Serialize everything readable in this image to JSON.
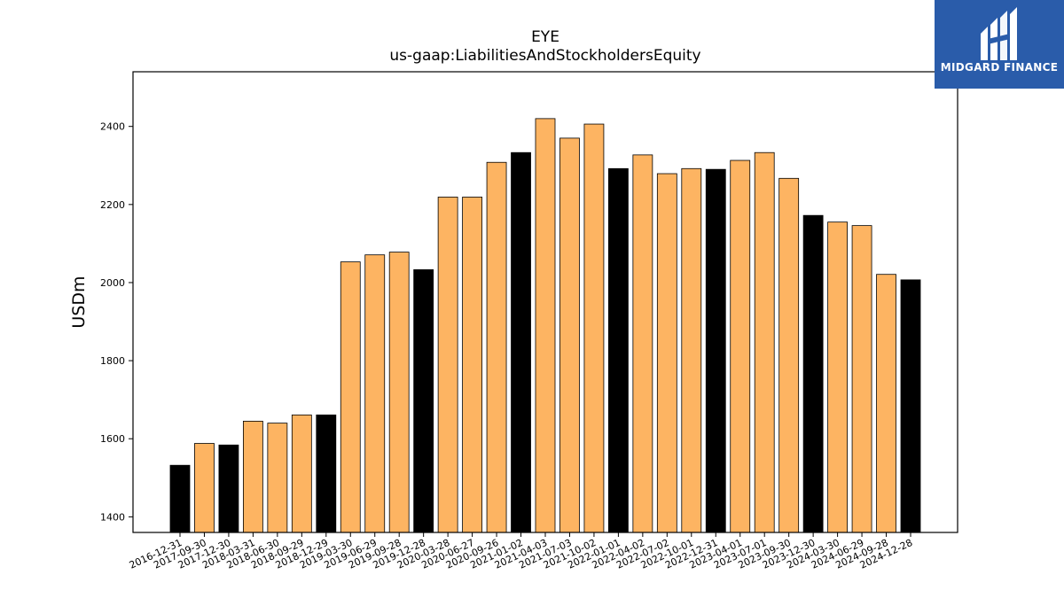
{
  "title": "EYE",
  "subtitle": "us-gaap:LiabilitiesAndStockholdersEquity",
  "logo_text": "MIDGARD FINANCE",
  "colors": {
    "quarter": "#fdb462",
    "year_end": "#000000",
    "logo_bg": "#2a5caa"
  },
  "chart_data": {
    "type": "bar",
    "title": "EYE",
    "subtitle": "us-gaap:LiabilitiesAndStockholdersEquity",
    "xlabel": "",
    "ylabel": "USDm",
    "ylim": [
      1360,
      2540
    ],
    "yticks": [
      1400,
      1600,
      1800,
      2000,
      2200,
      2400
    ],
    "grid": false,
    "categories": [
      "2016-12-31",
      "2017-09-30",
      "2017-12-30",
      "2018-03-31",
      "2018-06-30",
      "2018-09-29",
      "2018-12-29",
      "2019-03-30",
      "2019-06-29",
      "2019-09-28",
      "2019-12-28",
      "2020-03-28",
      "2020-06-27",
      "2020-09-26",
      "2021-01-02",
      "2021-04-03",
      "2021-07-03",
      "2021-10-02",
      "2022-01-01",
      "2022-04-02",
      "2022-07-02",
      "2022-10-01",
      "2022-12-31",
      "2023-04-01",
      "2023-07-01",
      "2023-09-30",
      "2023-12-30",
      "2024-03-30",
      "2024-06-29",
      "2024-09-28",
      "2024-12-28"
    ],
    "values": [
      1532,
      1588,
      1584,
      1645,
      1640,
      1661,
      1661,
      2053,
      2071,
      2078,
      2033,
      2219,
      2219,
      2308,
      2333,
      2420,
      2370,
      2406,
      2292,
      2327,
      2279,
      2292,
      2290,
      2313,
      2333,
      2267,
      2172,
      2155,
      2146,
      2021,
      2007
    ],
    "year_end": [
      true,
      false,
      true,
      false,
      false,
      false,
      true,
      false,
      false,
      false,
      true,
      false,
      false,
      false,
      true,
      false,
      false,
      false,
      true,
      false,
      false,
      false,
      true,
      false,
      false,
      false,
      true,
      false,
      false,
      false,
      true
    ]
  }
}
